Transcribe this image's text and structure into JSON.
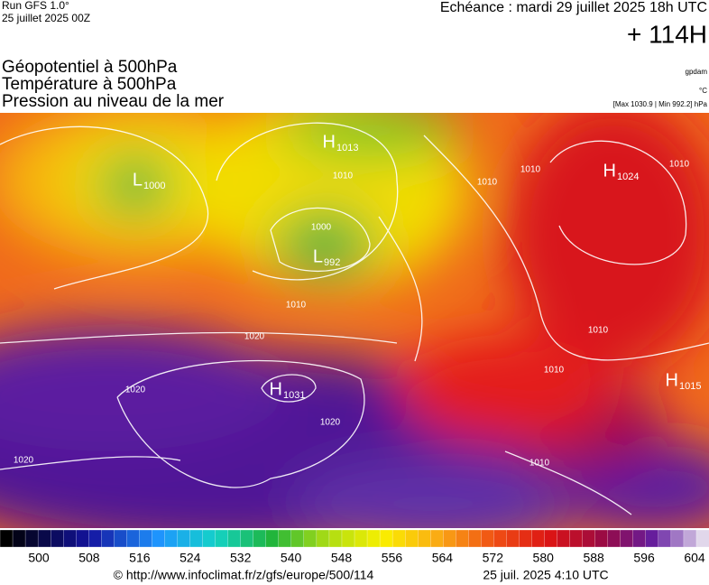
{
  "header": {
    "run": "Run GFS 1.0°",
    "run_date": "25 juillet 2025 00Z",
    "echeance": "Echéance : mardi 29 juillet 2025 18h UTC",
    "lead": "+ 114H",
    "fields": [
      "Géopotentiel à 500hPa",
      "Température à 500hPa",
      "Pression au niveau de la mer"
    ],
    "units": [
      "gpdam",
      "°C",
      "[Max 1030.9 | Min 992.2] hPa"
    ]
  },
  "map": {
    "centers": [
      {
        "type": "H",
        "value": "1013"
      },
      {
        "type": "L",
        "value": "1000"
      },
      {
        "type": "L",
        "value": "992"
      },
      {
        "type": "H",
        "value": "1031"
      },
      {
        "type": "H",
        "value": "1024"
      },
      {
        "type": "H",
        "value": "1015"
      }
    ],
    "isobar_labels": [
      "1010",
      "1010",
      "1010",
      "1010",
      "1010",
      "1010",
      "1010",
      "1000",
      "1020",
      "1020",
      "1020",
      "1020",
      "1010"
    ]
  },
  "colorbar": {
    "ticks": [
      500,
      508,
      516,
      524,
      532,
      540,
      548,
      556,
      564,
      572,
      580,
      588,
      596,
      604
    ]
  },
  "footer": {
    "source": "© http://www.infoclimat.fr/z/gfs/europe/500/114",
    "time": "25 juil. 2025  4:10 UTC"
  }
}
